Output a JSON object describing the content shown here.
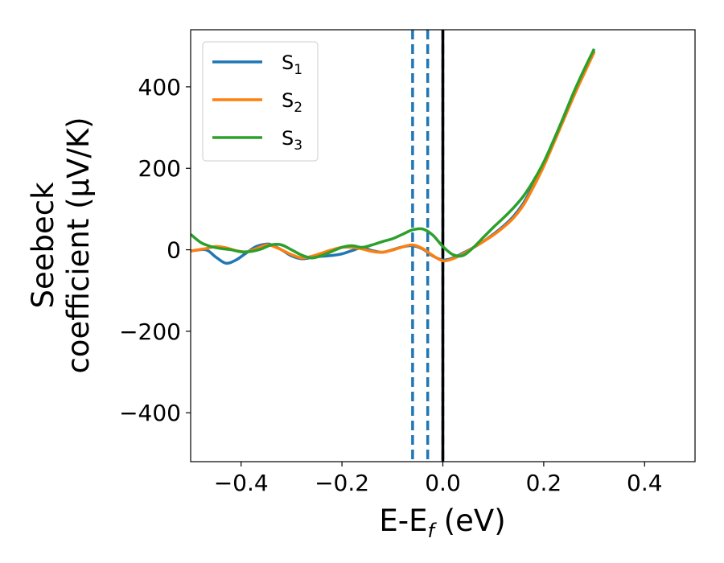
{
  "chart_data": {
    "type": "line",
    "title": "",
    "xlabel": {
      "base": "E-E",
      "sub": "f",
      "rest": " (eV)"
    },
    "ylabel": {
      "line1": "Seebeck",
      "line2": "coefficient  (μV/K)"
    },
    "xlim": [
      -0.5,
      0.5
    ],
    "ylim": [
      -520,
      540
    ],
    "xticks": [
      -0.4,
      -0.2,
      0.0,
      0.2,
      0.4
    ],
    "xtick_labels": [
      "−0.4",
      "−0.2",
      "0.0",
      "0.2",
      "0.4"
    ],
    "yticks": [
      -400,
      -200,
      0,
      200,
      400
    ],
    "ytick_labels": [
      "−400",
      "−200",
      "0",
      "200",
      "400"
    ],
    "grid": false,
    "legend": {
      "placement": "top-left"
    },
    "vlines": [
      {
        "x": -0.06,
        "style": "dashed",
        "color": "#1f77b4"
      },
      {
        "x": -0.03,
        "style": "dashed",
        "color": "#1f77b4"
      },
      {
        "x": 0.0,
        "style": "dashed",
        "color": "#1f77b4"
      },
      {
        "x": 0.0,
        "style": "solid",
        "color": "#000000"
      }
    ],
    "series": [
      {
        "name": "S",
        "sub": "1",
        "color": "#1f77b4",
        "x": [
          -0.5,
          -0.47,
          -0.45,
          -0.43,
          -0.41,
          -0.39,
          -0.37,
          -0.35,
          -0.34,
          -0.32,
          -0.3,
          -0.28,
          -0.26,
          -0.24,
          -0.22,
          -0.2,
          -0.18,
          -0.16,
          -0.14,
          -0.12,
          -0.1,
          -0.08,
          -0.06,
          -0.04,
          -0.02,
          0.0,
          0.02,
          0.04,
          0.06,
          0.08,
          0.1,
          0.12,
          0.14,
          0.16,
          0.18,
          0.2,
          0.22,
          0.24,
          0.26,
          0.28,
          0.3
        ],
        "y": [
          -3,
          0,
          -18,
          -33,
          -25,
          -8,
          8,
          14,
          12,
          0,
          -15,
          -22,
          -19,
          -16,
          -14,
          -10,
          -2,
          5,
          -2,
          -6,
          0,
          7,
          10,
          2,
          -15,
          -25,
          -20,
          -8,
          5,
          20,
          38,
          58,
          82,
          115,
          160,
          210,
          268,
          326,
          383,
          438,
          488
        ]
      },
      {
        "name": "S",
        "sub": "2",
        "color": "#ff7f0e",
        "x": [
          -0.5,
          -0.47,
          -0.45,
          -0.43,
          -0.41,
          -0.39,
          -0.37,
          -0.35,
          -0.34,
          -0.32,
          -0.3,
          -0.28,
          -0.26,
          -0.24,
          -0.22,
          -0.2,
          -0.18,
          -0.16,
          -0.14,
          -0.12,
          -0.1,
          -0.08,
          -0.06,
          -0.04,
          -0.02,
          0.0,
          0.02,
          0.04,
          0.06,
          0.08,
          0.1,
          0.12,
          0.14,
          0.16,
          0.18,
          0.2,
          0.22,
          0.24,
          0.26,
          0.28,
          0.3
        ],
        "y": [
          -3,
          3,
          8,
          5,
          -2,
          -5,
          3,
          12,
          10,
          0,
          -12,
          -20,
          -16,
          -8,
          0,
          6,
          6,
          2,
          -4,
          -6,
          -1,
          7,
          12,
          3,
          -14,
          -27,
          -22,
          -10,
          5,
          20,
          36,
          55,
          78,
          110,
          155,
          205,
          262,
          320,
          378,
          432,
          485
        ]
      },
      {
        "name": "S",
        "sub": "3",
        "color": "#2ca02c",
        "x": [
          -0.5,
          -0.48,
          -0.46,
          -0.44,
          -0.42,
          -0.4,
          -0.38,
          -0.36,
          -0.34,
          -0.32,
          -0.3,
          -0.28,
          -0.26,
          -0.24,
          -0.22,
          -0.2,
          -0.18,
          -0.16,
          -0.14,
          -0.12,
          -0.1,
          -0.08,
          -0.06,
          -0.04,
          -0.02,
          0.0,
          0.02,
          0.04,
          0.06,
          0.08,
          0.1,
          0.12,
          0.14,
          0.16,
          0.18,
          0.2,
          0.22,
          0.24,
          0.26,
          0.28,
          0.3
        ],
        "y": [
          38,
          18,
          8,
          3,
          0,
          -5,
          -4,
          2,
          12,
          12,
          0,
          -13,
          -20,
          -14,
          -4,
          6,
          10,
          6,
          12,
          20,
          27,
          38,
          49,
          51,
          36,
          8,
          -12,
          -14,
          5,
          30,
          55,
          78,
          103,
          132,
          170,
          215,
          270,
          328,
          388,
          442,
          493
        ]
      }
    ]
  }
}
